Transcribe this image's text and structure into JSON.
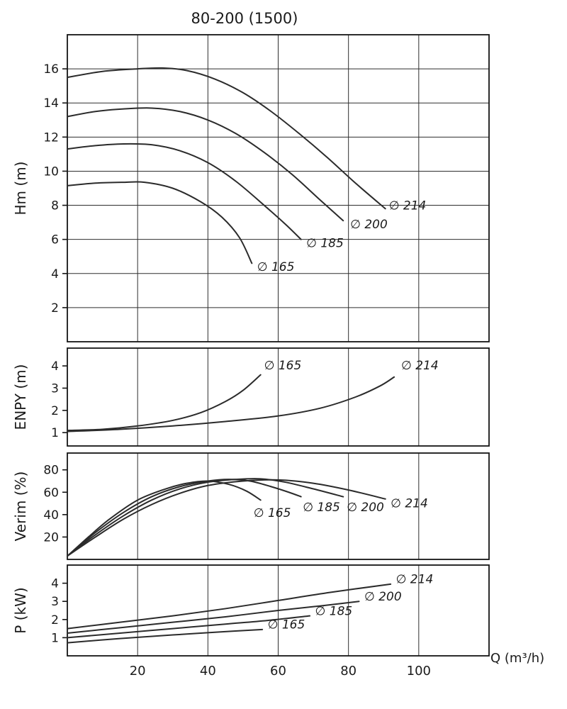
{
  "title": "80-200 (1500)",
  "x_axis": {
    "label": "Q (m³/h)",
    "lim": [
      0,
      120
    ],
    "ticks": [
      20,
      40,
      60,
      80,
      100
    ]
  },
  "colors": {
    "curve": "#2b2b2b",
    "grid": "#2e2e2e",
    "frame": "#151515",
    "text": "#1a1a1a"
  },
  "chart_data": [
    {
      "type": "line",
      "ylabel": "Hm (m)",
      "ylim": [
        0,
        18
      ],
      "yticks": [
        2,
        4,
        6,
        8,
        10,
        12,
        14,
        16
      ],
      "hgrid": true,
      "series": [
        {
          "name": "∅ 214",
          "x": [
            0,
            10,
            20,
            27,
            34,
            42,
            50,
            58,
            66,
            74,
            82,
            90.5
          ],
          "y": [
            15.5,
            15.85,
            16.0,
            16.05,
            15.9,
            15.4,
            14.6,
            13.5,
            12.2,
            10.8,
            9.3,
            7.8
          ],
          "label_at": [
            91.5,
            7.75
          ]
        },
        {
          "name": "∅ 200",
          "x": [
            0,
            8,
            16,
            24,
            32,
            40,
            48,
            56,
            64,
            72,
            78.5
          ],
          "y": [
            13.2,
            13.5,
            13.65,
            13.7,
            13.5,
            13.0,
            12.2,
            11.1,
            9.8,
            8.3,
            7.1
          ],
          "label_at": [
            80.5,
            6.65
          ]
        },
        {
          "name": "∅ 185",
          "x": [
            0,
            8,
            16,
            24,
            32,
            40,
            48,
            56,
            62,
            66.5
          ],
          "y": [
            11.3,
            11.5,
            11.6,
            11.55,
            11.2,
            10.5,
            9.4,
            8.0,
            6.9,
            6.0
          ],
          "label_at": [
            68,
            5.55
          ]
        },
        {
          "name": "∅ 165",
          "x": [
            0,
            8,
            16,
            22,
            30,
            38,
            44,
            49,
            52.5
          ],
          "y": [
            9.15,
            9.3,
            9.35,
            9.35,
            9.0,
            8.2,
            7.3,
            6.1,
            4.6
          ],
          "label_at": [
            54,
            4.15
          ]
        }
      ]
    },
    {
      "type": "line",
      "ylabel": "ENPY (m)",
      "ylim": [
        0.4,
        4.8
      ],
      "yticks": [
        1,
        2,
        3,
        4
      ],
      "hgrid": false,
      "series": [
        {
          "name": "∅ 165",
          "x": [
            0,
            10,
            20,
            30,
            38,
            45,
            50,
            55
          ],
          "y": [
            1.1,
            1.15,
            1.3,
            1.55,
            1.9,
            2.4,
            2.9,
            3.6
          ],
          "label_at": [
            56,
            3.85
          ]
        },
        {
          "name": "∅ 214",
          "x": [
            0,
            15,
            30,
            45,
            60,
            72,
            82,
            89,
            93
          ],
          "y": [
            1.05,
            1.15,
            1.3,
            1.5,
            1.75,
            2.1,
            2.6,
            3.1,
            3.5
          ],
          "label_at": [
            95,
            3.85
          ]
        }
      ]
    },
    {
      "type": "line",
      "ylabel": "Verim (%)",
      "ylim": [
        0,
        95
      ],
      "yticks": [
        20,
        40,
        60,
        80
      ],
      "hgrid": false,
      "series": [
        {
          "name": "∅ 165",
          "x": [
            0,
            6,
            12,
            20,
            28,
            34,
            40,
            46,
            51,
            55
          ],
          "y": [
            3,
            20,
            36,
            53,
            63,
            68,
            70,
            67,
            61,
            53
          ],
          "label_at": [
            53,
            38
          ]
        },
        {
          "name": "∅ 185",
          "x": [
            0,
            8,
            16,
            24,
            32,
            40,
            46,
            52,
            58,
            63,
            66.5
          ],
          "y": [
            3,
            24,
            42,
            56,
            65,
            70,
            71.5,
            70,
            65,
            60,
            56
          ],
          "label_at": [
            67,
            43
          ]
        },
        {
          "name": "∅ 200",
          "x": [
            0,
            8,
            16,
            24,
            32,
            40,
            48,
            55,
            62,
            70,
            78.5
          ],
          "y": [
            3,
            22,
            39,
            53,
            63,
            69,
            71.5,
            72,
            69,
            63,
            56
          ],
          "label_at": [
            79.5,
            43
          ]
        },
        {
          "name": "∅ 214",
          "x": [
            0,
            8,
            16,
            24,
            32,
            40,
            50,
            60,
            70,
            80,
            90.5
          ],
          "y": [
            3,
            20,
            36,
            49,
            59,
            66,
            70,
            71,
            68,
            62,
            54
          ],
          "label_at": [
            92,
            46.5
          ]
        }
      ]
    },
    {
      "type": "line",
      "ylabel": "P (kW)",
      "ylim": [
        0,
        5
      ],
      "yticks": [
        1,
        2,
        3,
        4
      ],
      "hgrid": false,
      "series": [
        {
          "name": "∅ 214",
          "x": [
            0,
            15,
            30,
            45,
            60,
            75,
            92
          ],
          "y": [
            1.5,
            1.85,
            2.2,
            2.6,
            3.05,
            3.5,
            3.95
          ],
          "label_at": [
            93.5,
            4.0
          ]
        },
        {
          "name": "∅ 200",
          "x": [
            0,
            15,
            30,
            45,
            60,
            72,
            83
          ],
          "y": [
            1.25,
            1.55,
            1.85,
            2.15,
            2.5,
            2.75,
            3.0
          ],
          "label_at": [
            84.5,
            3.05
          ]
        },
        {
          "name": "∅ 185",
          "x": [
            0,
            15,
            30,
            45,
            57,
            69
          ],
          "y": [
            1.0,
            1.25,
            1.5,
            1.75,
            1.95,
            2.2
          ],
          "label_at": [
            70.5,
            2.25
          ]
        },
        {
          "name": "∅ 165",
          "x": [
            0,
            15,
            30,
            42,
            55.5
          ],
          "y": [
            0.72,
            0.95,
            1.15,
            1.3,
            1.45
          ],
          "label_at": [
            57,
            1.5
          ]
        }
      ]
    }
  ]
}
